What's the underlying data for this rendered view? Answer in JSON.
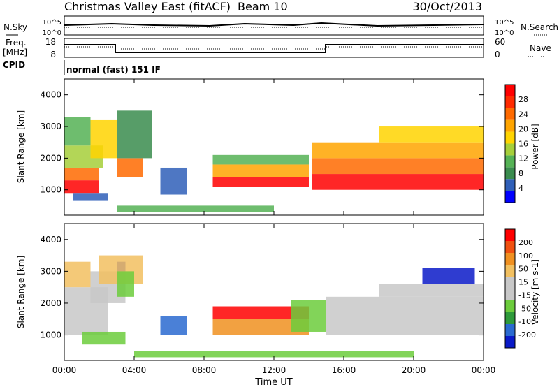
{
  "header": {
    "title": "Christmas Valley East (fitACF)",
    "beam": "Beam 10",
    "date": "30/Oct/2013"
  },
  "sky_panel": {
    "left_label": "N.Sky",
    "right_label": "N.Search",
    "left_ticks": [
      "10^5",
      "10^0"
    ],
    "right_ticks": [
      "10^5",
      "10^0"
    ]
  },
  "freq_panel": {
    "left_label_1": "Freq.",
    "left_label_2": "[MHz]",
    "right_label": "Nave",
    "left_ticks": [
      "18",
      "8"
    ],
    "right_ticks": [
      "60",
      "0"
    ]
  },
  "cpid": {
    "label": "CPID",
    "value": "normal (fast) 151 IF"
  },
  "colors": {
    "power": [
      "#0000ff",
      "#2f5fb8",
      "#3a8c4e",
      "#55b255",
      "#a6cf3a",
      "#ffd400",
      "#ffa500",
      "#ff6a00",
      "#ff2a00",
      "#ff0000"
    ],
    "velocity": [
      "#0a1ac8",
      "#2a6ad0",
      "#2e9a3a",
      "#6ccc3c",
      "#c8c8c8",
      "#c8c8c8",
      "#f2c060",
      "#f09020",
      "#f05010",
      "#ff0000"
    ]
  },
  "chart_data": [
    {
      "type": "heatmap",
      "quantity": "power",
      "ylabel": "Slant Range [km]",
      "yticks": [
        "4000",
        "3000",
        "2000",
        "1000"
      ],
      "ylim": [
        200,
        4500
      ],
      "xlim": [
        0,
        24
      ],
      "colorbar_label": "Power [dB]",
      "colorbar_ticks": [
        "28",
        "24",
        "20",
        "16",
        "12",
        "8",
        "4"
      ],
      "bands": [
        {
          "t0": 0.0,
          "t1": 2.0,
          "r0": 900,
          "r1": 1300,
          "level": 9
        },
        {
          "t0": 0.0,
          "t1": 2.0,
          "r0": 1300,
          "r1": 1700,
          "level": 7
        },
        {
          "t0": 0.0,
          "t1": 2.2,
          "r0": 1700,
          "r1": 2400,
          "level": 4
        },
        {
          "t0": 0.0,
          "t1": 1.5,
          "r0": 2400,
          "r1": 3300,
          "level": 3
        },
        {
          "t0": 0.5,
          "t1": 2.5,
          "r0": 650,
          "r1": 900,
          "level": 1
        },
        {
          "t0": 1.5,
          "t1": 3.0,
          "r0": 2000,
          "r1": 3200,
          "level": 5
        },
        {
          "t0": 3.0,
          "t1": 4.5,
          "r0": 1400,
          "r1": 2000,
          "level": 7
        },
        {
          "t0": 3.0,
          "t1": 5.0,
          "r0": 2000,
          "r1": 3500,
          "level": 2
        },
        {
          "t0": 5.5,
          "t1": 7.0,
          "r0": 850,
          "r1": 1700,
          "level": 1
        },
        {
          "t0": 8.5,
          "t1": 14.0,
          "r0": 1100,
          "r1": 1400,
          "level": 9
        },
        {
          "t0": 8.5,
          "t1": 14.0,
          "r0": 1400,
          "r1": 1800,
          "level": 6
        },
        {
          "t0": 8.5,
          "t1": 14.0,
          "r0": 1800,
          "r1": 2100,
          "level": 3
        },
        {
          "t0": 14.2,
          "t1": 24.0,
          "r0": 1000,
          "r1": 1500,
          "level": 9
        },
        {
          "t0": 14.2,
          "t1": 24.0,
          "r0": 1500,
          "r1": 2000,
          "level": 7
        },
        {
          "t0": 14.2,
          "t1": 24.0,
          "r0": 2000,
          "r1": 2500,
          "level": 6
        },
        {
          "t0": 18.0,
          "t1": 24.0,
          "r0": 2500,
          "r1": 3000,
          "level": 5
        },
        {
          "t0": 3.0,
          "t1": 12.0,
          "r0": 300,
          "r1": 500,
          "level": 3
        }
      ]
    },
    {
      "type": "heatmap",
      "quantity": "velocity",
      "xlabel": "Time UT",
      "ylabel": "Slant Range [km]",
      "xticks": [
        "00:00",
        "04:00",
        "08:00",
        "12:00",
        "16:00",
        "20:00",
        "00:00"
      ],
      "yticks": [
        "4000",
        "3000",
        "2000",
        "1000"
      ],
      "ylim": [
        200,
        4500
      ],
      "xlim": [
        0,
        24
      ],
      "colorbar_label": "Velocity [m s-1]",
      "colorbar_ticks": [
        "200",
        "100",
        "50",
        "15",
        "-15",
        "-50",
        "-100",
        "-200"
      ],
      "bands": [
        {
          "t0": 0.0,
          "t1": 2.5,
          "r0": 1000,
          "r1": 2500,
          "level": 4
        },
        {
          "t0": 0.0,
          "t1": 1.5,
          "r0": 2500,
          "r1": 3300,
          "level": 6
        },
        {
          "t0": 1.5,
          "t1": 3.5,
          "r0": 2000,
          "r1": 3000,
          "level": 4
        },
        {
          "t0": 3.0,
          "t1": 3.5,
          "r0": 3000,
          "r1": 3300,
          "level": 0
        },
        {
          "t0": 2.0,
          "t1": 4.5,
          "r0": 2600,
          "r1": 3500,
          "level": 6
        },
        {
          "t0": 3.0,
          "t1": 4.0,
          "r0": 2200,
          "r1": 3000,
          "level": 3
        },
        {
          "t0": 1.0,
          "t1": 3.5,
          "r0": 700,
          "r1": 1100,
          "level": 3
        },
        {
          "t0": 5.5,
          "t1": 7.0,
          "r0": 1000,
          "r1": 1600,
          "level": 1
        },
        {
          "t0": 4.0,
          "t1": 20.0,
          "r0": 300,
          "r1": 500,
          "level": 3
        },
        {
          "t0": 8.5,
          "t1": 14.0,
          "r0": 1500,
          "r1": 1900,
          "level": 9
        },
        {
          "t0": 8.5,
          "t1": 14.0,
          "r0": 1000,
          "r1": 1500,
          "level": 7
        },
        {
          "t0": 13.0,
          "t1": 15.0,
          "r0": 1100,
          "r1": 2100,
          "level": 3
        },
        {
          "t0": 15.0,
          "t1": 24.0,
          "r0": 1000,
          "r1": 2200,
          "level": 4
        },
        {
          "t0": 18.0,
          "t1": 24.0,
          "r0": 2200,
          "r1": 2600,
          "level": 5
        },
        {
          "t0": 20.5,
          "t1": 23.5,
          "r0": 2600,
          "r1": 3100,
          "level": 0
        }
      ]
    }
  ]
}
